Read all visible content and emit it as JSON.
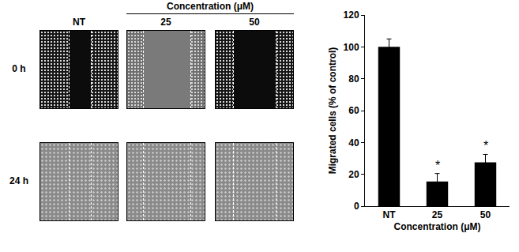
{
  "panels": {
    "header": "Concentration (μM)",
    "columns": [
      "NT",
      "25",
      "50"
    ],
    "rows": [
      "0 h",
      "24 h"
    ]
  },
  "chart_data": {
    "type": "bar",
    "categories": [
      "NT",
      "25",
      "50"
    ],
    "values": [
      100,
      15.5,
      27.5
    ],
    "errors": [
      5,
      5,
      5
    ],
    "color": "#000000",
    "xlabel": "Concentration (μM)",
    "ylabel": "Migrated cells (% of control)",
    "ylim": [
      0,
      120
    ],
    "yticks": [
      0,
      20,
      40,
      60,
      80,
      100,
      120
    ],
    "grid": false,
    "annotations": [
      {
        "category": "25",
        "text": "*"
      },
      {
        "category": "50",
        "text": "*"
      }
    ]
  }
}
